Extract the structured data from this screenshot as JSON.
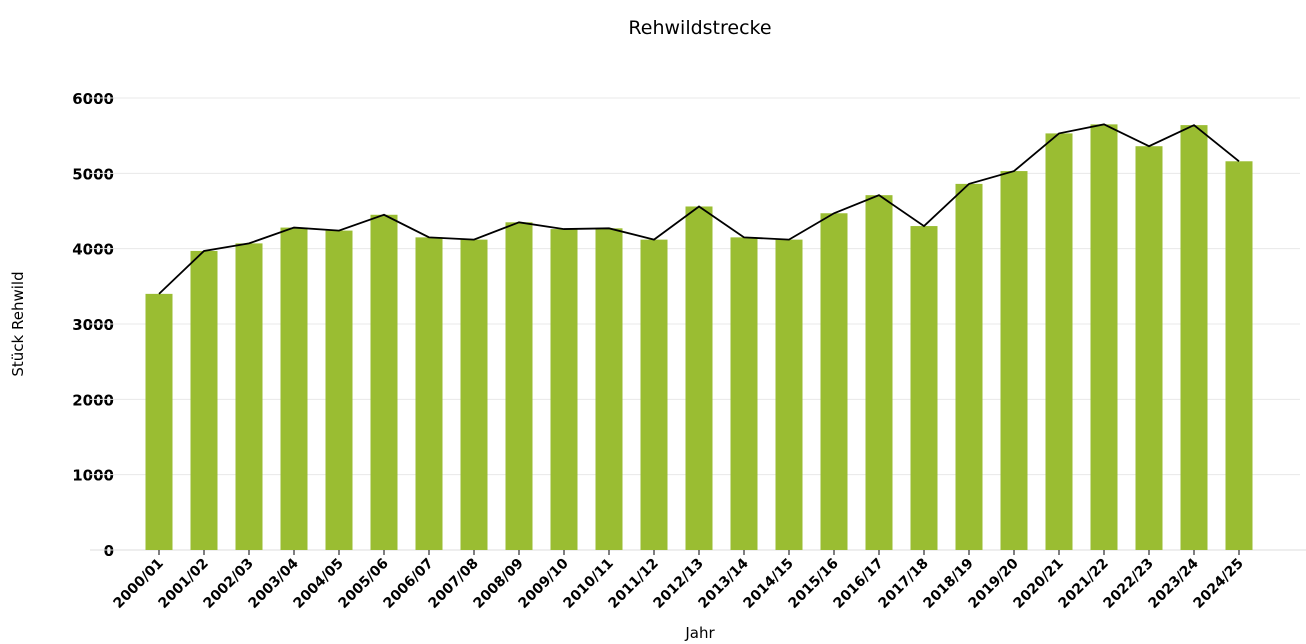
{
  "chart_data": {
    "type": "bar",
    "title": "Rehwildstrecke",
    "x_label": "Jahr",
    "y_label": "Stück Rehwild",
    "categories": [
      "2000/01",
      "2001/02",
      "2002/03",
      "2003/04",
      "2004/05",
      "2005/06",
      "2006/07",
      "2007/08",
      "2008/09",
      "2009/10",
      "2010/11",
      "2011/12",
      "2012/13",
      "2013/14",
      "2014/15",
      "2015/16",
      "2016/17",
      "2017/18",
      "2018/19",
      "2019/20",
      "2020/21",
      "2021/22",
      "2022/23",
      "2023/24",
      "2024/25"
    ],
    "values": [
      3400,
      3970,
      4070,
      4280,
      4240,
      4450,
      4150,
      4120,
      4350,
      4260,
      4270,
      4120,
      4560,
      4150,
      4120,
      4470,
      4710,
      4300,
      4860,
      5030,
      5530,
      5650,
      5360,
      5640,
      5160
    ],
    "color": "#9abd32",
    "line_color": "#000000",
    "ylim": [
      0,
      6000
    ],
    "yticks": [
      0,
      1000,
      2000,
      3000,
      4000,
      5000,
      6000
    ],
    "grid": true
  }
}
